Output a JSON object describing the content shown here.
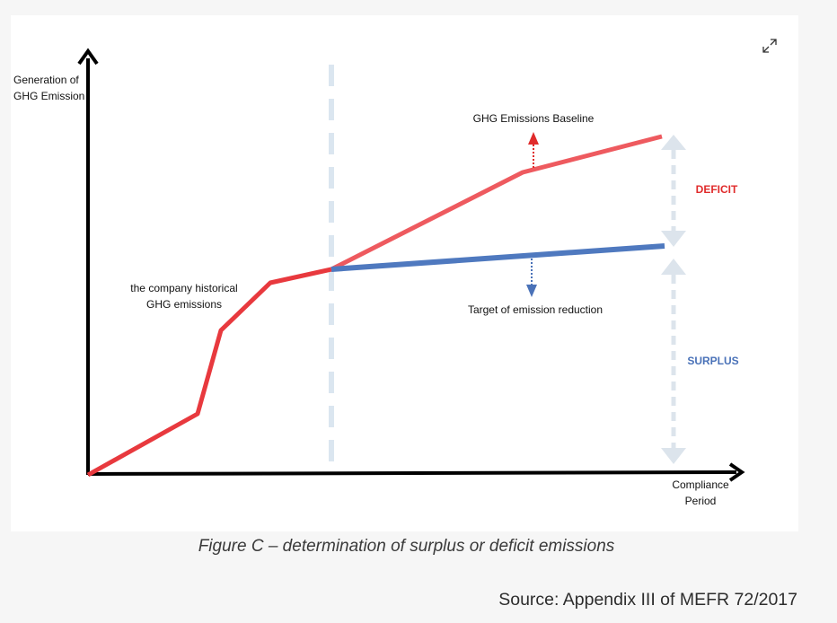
{
  "diagram": {
    "y_axis_label_line1": "Generation of",
    "y_axis_label_line2": "GHG Emission",
    "x_axis_label_line1": "Compliance",
    "x_axis_label_line2": "Period",
    "historical_label_line1": "the company historical",
    "historical_label_line2": "GHG emissions",
    "baseline_label": "GHG Emissions Baseline",
    "target_label": "Target of emission reduction",
    "deficit_label": "DEFICIT",
    "surplus_label": "SURPLUS",
    "colors": {
      "historical": "#e8393e",
      "baseline": "#ee5a5f",
      "target": "#4f79bf",
      "deficit": "#e02b2b",
      "surplus": "#4a72b8",
      "divider": "#dbe6f0",
      "range_arrow": "#dce4ec",
      "axis": "#000000"
    }
  },
  "caption": "Figure C – determination of surplus or deficit emissions",
  "source": "Source: Appendix III of MEFR 72/2017",
  "expand_icon": "expand-icon"
}
